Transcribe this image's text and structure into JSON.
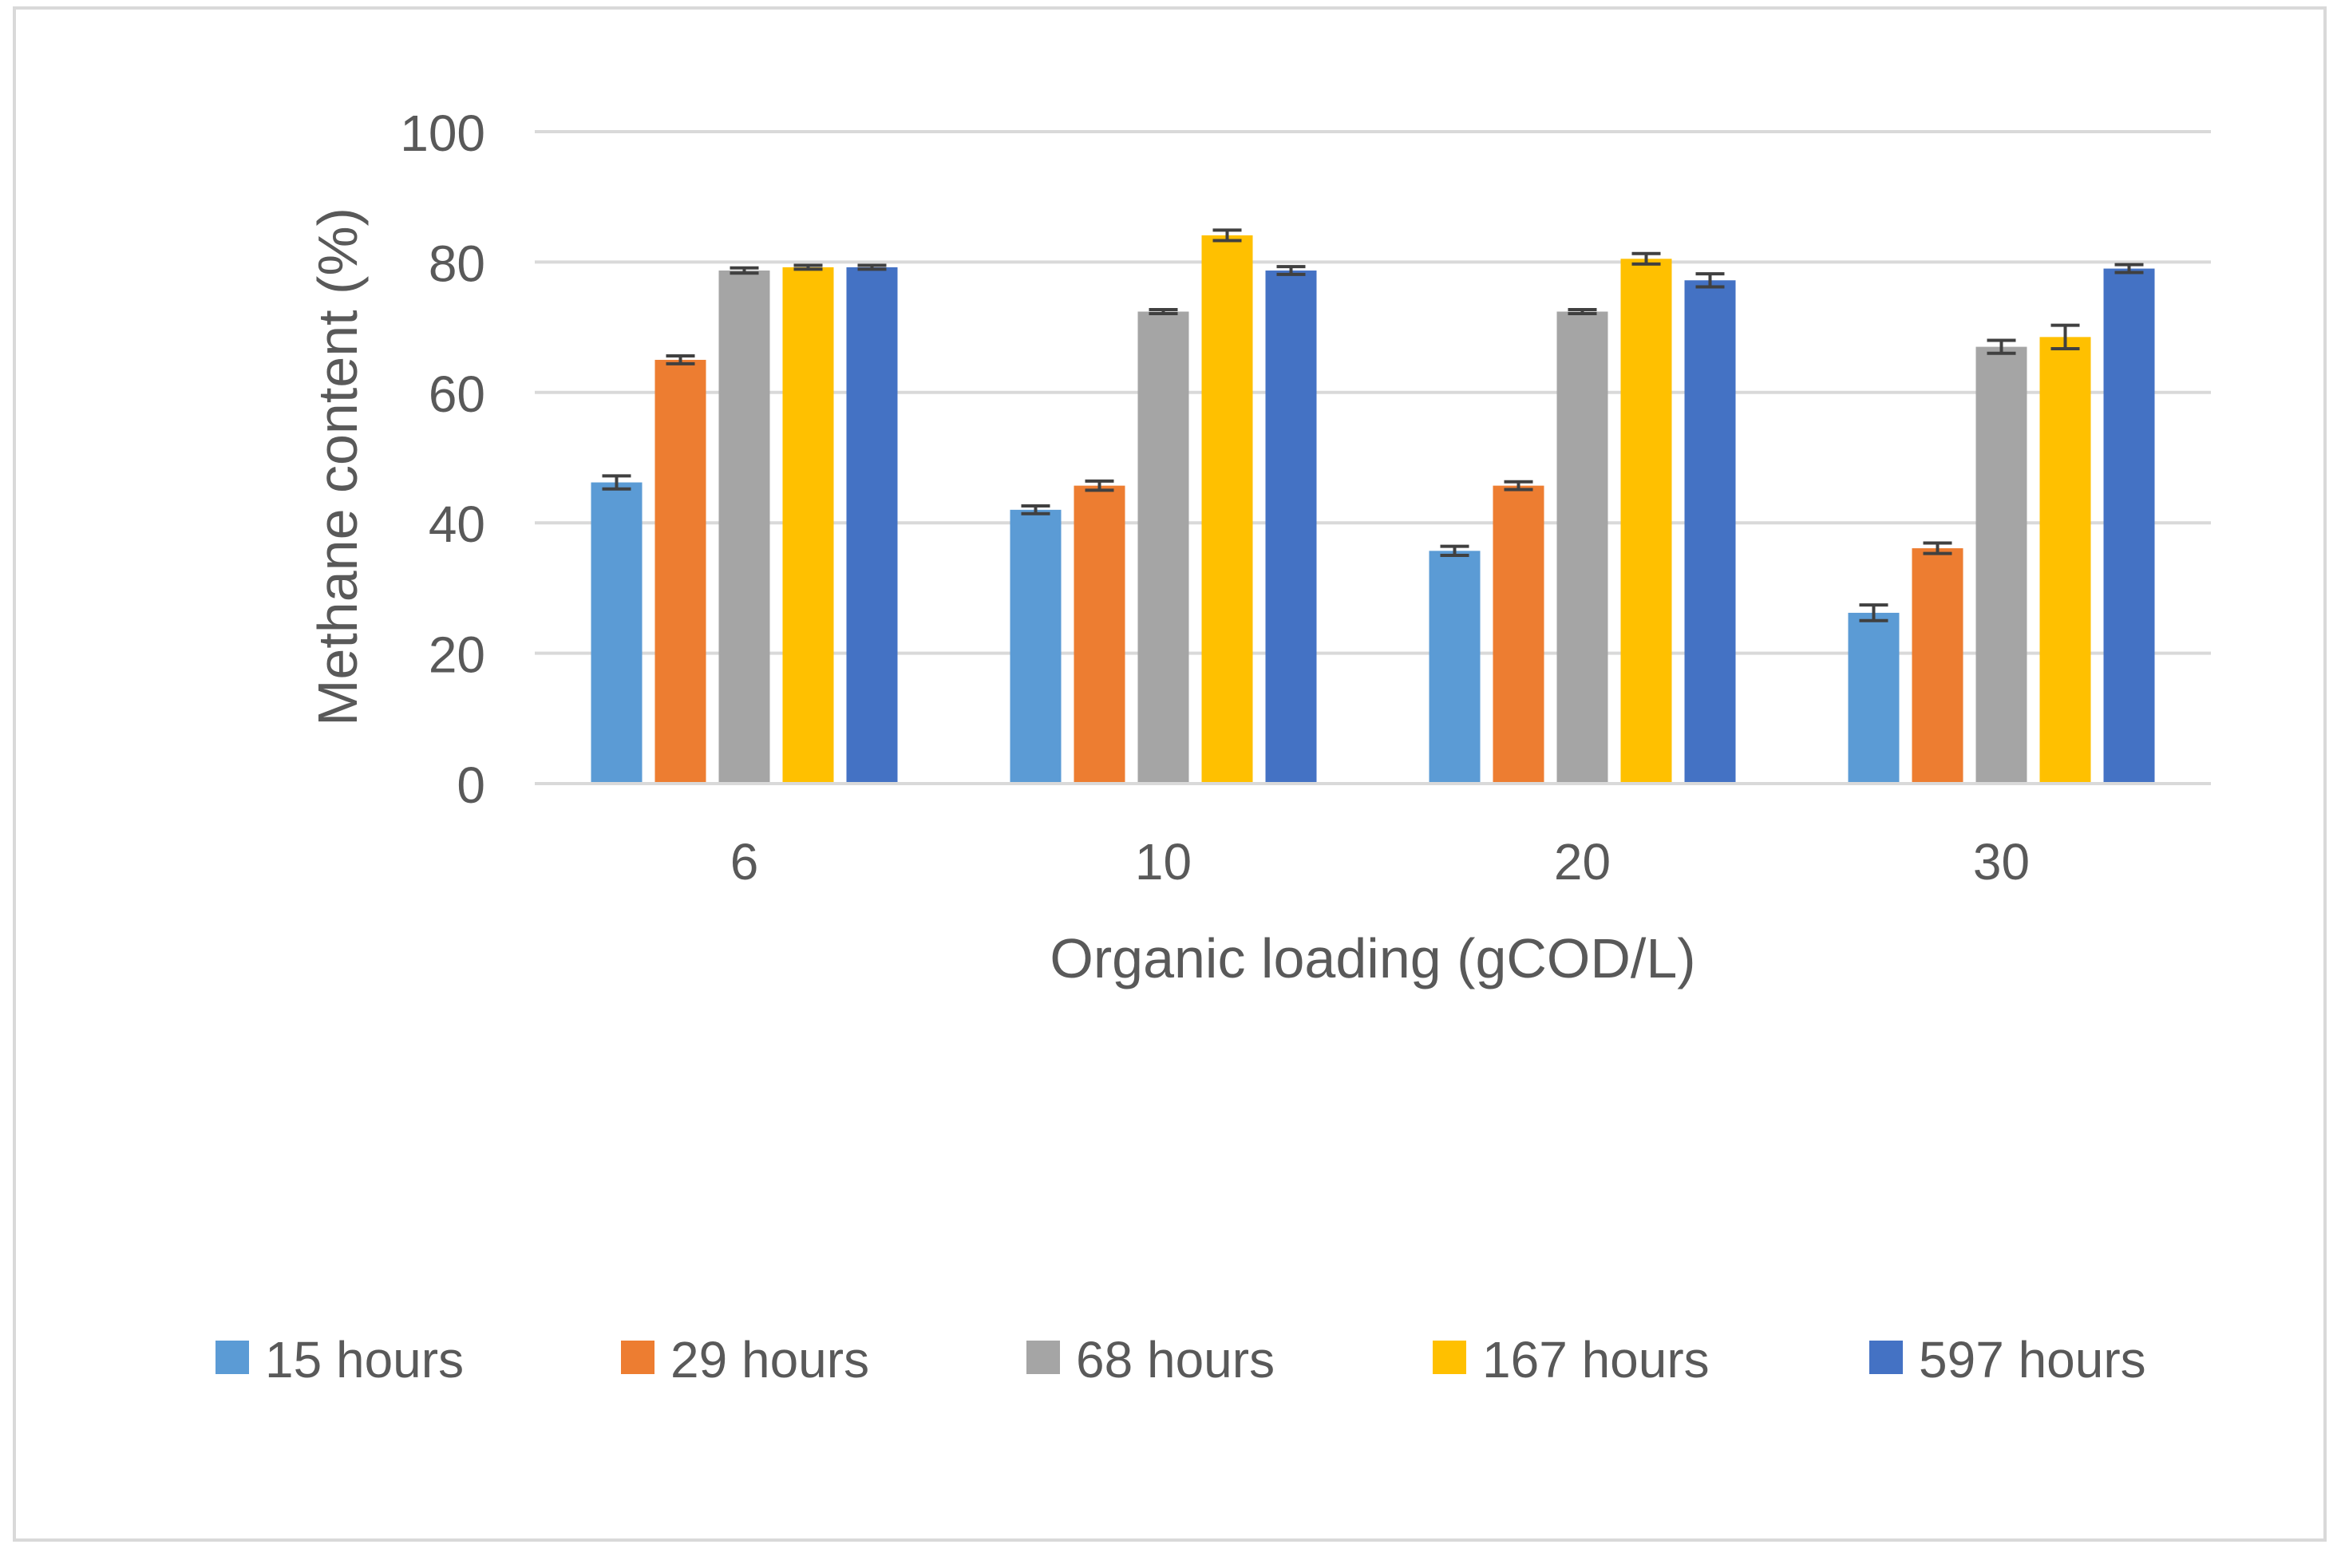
{
  "chart_data": {
    "type": "bar",
    "title": "",
    "xlabel": "Organic loading (gCOD/L)",
    "ylabel": "Methane content (%)",
    "ylim": [
      0,
      100
    ],
    "yticks": [
      0,
      20,
      40,
      60,
      80,
      100
    ],
    "grid": true,
    "legend_position": "bottom",
    "categories": [
      "6",
      "10",
      "20",
      "30"
    ],
    "series": [
      {
        "name": "15 hours",
        "color": "#5B9BD5",
        "values": [
          46.2,
          42.0,
          35.7,
          26.2
        ],
        "errors": [
          1.0,
          0.6,
          0.7,
          1.2
        ]
      },
      {
        "name": "29 hours",
        "color": "#ED7D31",
        "values": [
          65.0,
          45.7,
          45.7,
          36.1
        ],
        "errors": [
          0.6,
          0.7,
          0.6,
          0.8
        ]
      },
      {
        "name": "68 hours",
        "color": "#A5A5A5",
        "values": [
          78.7,
          72.4,
          72.4,
          67.0
        ],
        "errors": [
          0.4,
          0.3,
          0.3,
          1.0
        ]
      },
      {
        "name": "167 hours",
        "color": "#FFC000",
        "values": [
          79.2,
          84.1,
          80.5,
          68.5
        ],
        "errors": [
          0.3,
          0.8,
          0.8,
          1.8
        ]
      },
      {
        "name": "597 hours",
        "color": "#4472C4",
        "values": [
          79.2,
          78.7,
          77.2,
          79.0
        ],
        "errors": [
          0.3,
          0.6,
          1.0,
          0.6
        ]
      }
    ]
  }
}
